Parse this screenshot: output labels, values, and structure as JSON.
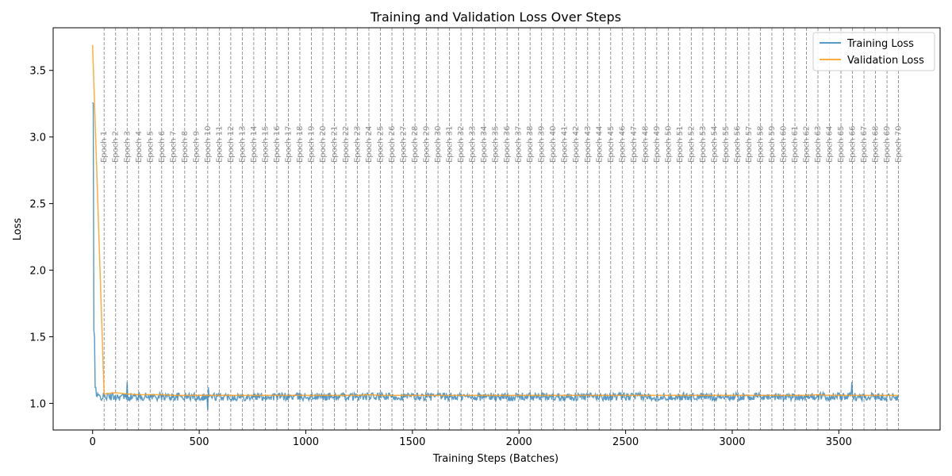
{
  "chart_data": {
    "type": "line",
    "title": "Training and Validation Loss Over Steps",
    "xlabel": "Training Steps (Batches)",
    "ylabel": "Loss",
    "xlim": [
      -185,
      3975
    ],
    "ylim": [
      0.8,
      3.82
    ],
    "x_ticks": [
      0,
      500,
      1000,
      1500,
      2000,
      2500,
      3000,
      3500
    ],
    "y_ticks": [
      1.0,
      1.5,
      2.0,
      2.5,
      3.0,
      3.5
    ],
    "grid": false,
    "legend_position": "top-right",
    "colors": {
      "training": "#1f77b4",
      "validation": "#ff9f1c",
      "epoch_line": "#808080"
    },
    "epoch_step_interval": 54,
    "total_steps": 3780,
    "series": [
      {
        "name": "Training Loss",
        "description_points": [
          [
            0,
            3.26
          ],
          [
            3,
            3.25
          ],
          [
            6,
            1.55
          ],
          [
            9,
            1.5
          ],
          [
            12,
            1.15
          ],
          [
            18,
            1.08
          ],
          [
            30,
            1.05
          ],
          [
            54,
            1.05
          ],
          [
            160,
            1.16
          ],
          [
            540,
            0.95
          ],
          [
            3560,
            1.16
          ]
        ],
        "baseline": 1.05,
        "noise": 0.03
      },
      {
        "name": "Validation Loss",
        "x": [
          0,
          54,
          108,
          162,
          216,
          270,
          324,
          378,
          432,
          486,
          540,
          594,
          648,
          702,
          756,
          810,
          864,
          918,
          972,
          1026,
          1080,
          1134,
          1188,
          1242,
          1296,
          1350,
          1404,
          1458,
          1512,
          1566,
          1620,
          1674,
          1728,
          1782,
          1836,
          1890,
          1944,
          1998,
          2052,
          2106,
          2160,
          2214,
          2268,
          2322,
          2376,
          2430,
          2484,
          2538,
          2592,
          2646,
          2700,
          2754,
          2808,
          2862,
          2916,
          2970,
          3024,
          3078,
          3132,
          3186,
          3240,
          3294,
          3348,
          3402,
          3456,
          3510,
          3564,
          3618,
          3672,
          3726,
          3780
        ],
        "y": [
          3.69,
          1.07,
          1.08,
          1.07,
          1.065,
          1.065,
          1.065,
          1.06,
          1.06,
          1.06,
          1.06,
          1.06,
          1.06,
          1.06,
          1.06,
          1.06,
          1.06,
          1.06,
          1.06,
          1.06,
          1.06,
          1.06,
          1.06,
          1.06,
          1.065,
          1.06,
          1.06,
          1.06,
          1.06,
          1.06,
          1.06,
          1.06,
          1.06,
          1.06,
          1.06,
          1.06,
          1.06,
          1.06,
          1.06,
          1.06,
          1.06,
          1.06,
          1.06,
          1.06,
          1.06,
          1.06,
          1.06,
          1.06,
          1.06,
          1.06,
          1.06,
          1.06,
          1.06,
          1.06,
          1.06,
          1.06,
          1.06,
          1.06,
          1.06,
          1.06,
          1.06,
          1.06,
          1.06,
          1.065,
          1.06,
          1.06,
          1.06,
          1.06,
          1.06,
          1.06,
          1.06
        ]
      }
    ],
    "epoch_labels": [
      "Epoch 1",
      "Epoch 2",
      "Epoch 3",
      "Epoch 4",
      "Epoch 5",
      "Epoch 6",
      "Epoch 7",
      "Epoch 8",
      "Epoch 9",
      "Epoch 10",
      "Epoch 11",
      "Epoch 12",
      "Epoch 13",
      "Epoch 14",
      "Epoch 15",
      "Epoch 16",
      "Epoch 17",
      "Epoch 18",
      "Epoch 19",
      "Epoch 20",
      "Epoch 21",
      "Epoch 22",
      "Epoch 23",
      "Epoch 24",
      "Epoch 25",
      "Epoch 26",
      "Epoch 27",
      "Epoch 28",
      "Epoch 29",
      "Epoch 30",
      "Epoch 31",
      "Epoch 32",
      "Epoch 33",
      "Epoch 34",
      "Epoch 35",
      "Epoch 36",
      "Epoch 37",
      "Epoch 38",
      "Epoch 39",
      "Epoch 40",
      "Epoch 41",
      "Epoch 42",
      "Epoch 43",
      "Epoch 44",
      "Epoch 45",
      "Epoch 46",
      "Epoch 47",
      "Epoch 48",
      "Epoch 49",
      "Epoch 50",
      "Epoch 51",
      "Epoch 52",
      "Epoch 53",
      "Epoch 54",
      "Epoch 55",
      "Epoch 56",
      "Epoch 57",
      "Epoch 58",
      "Epoch 59",
      "Epoch 60",
      "Epoch 61",
      "Epoch 62",
      "Epoch 63",
      "Epoch 64",
      "Epoch 65",
      "Epoch 66",
      "Epoch 67",
      "Epoch 68",
      "Epoch 69",
      "Epoch 70"
    ]
  }
}
